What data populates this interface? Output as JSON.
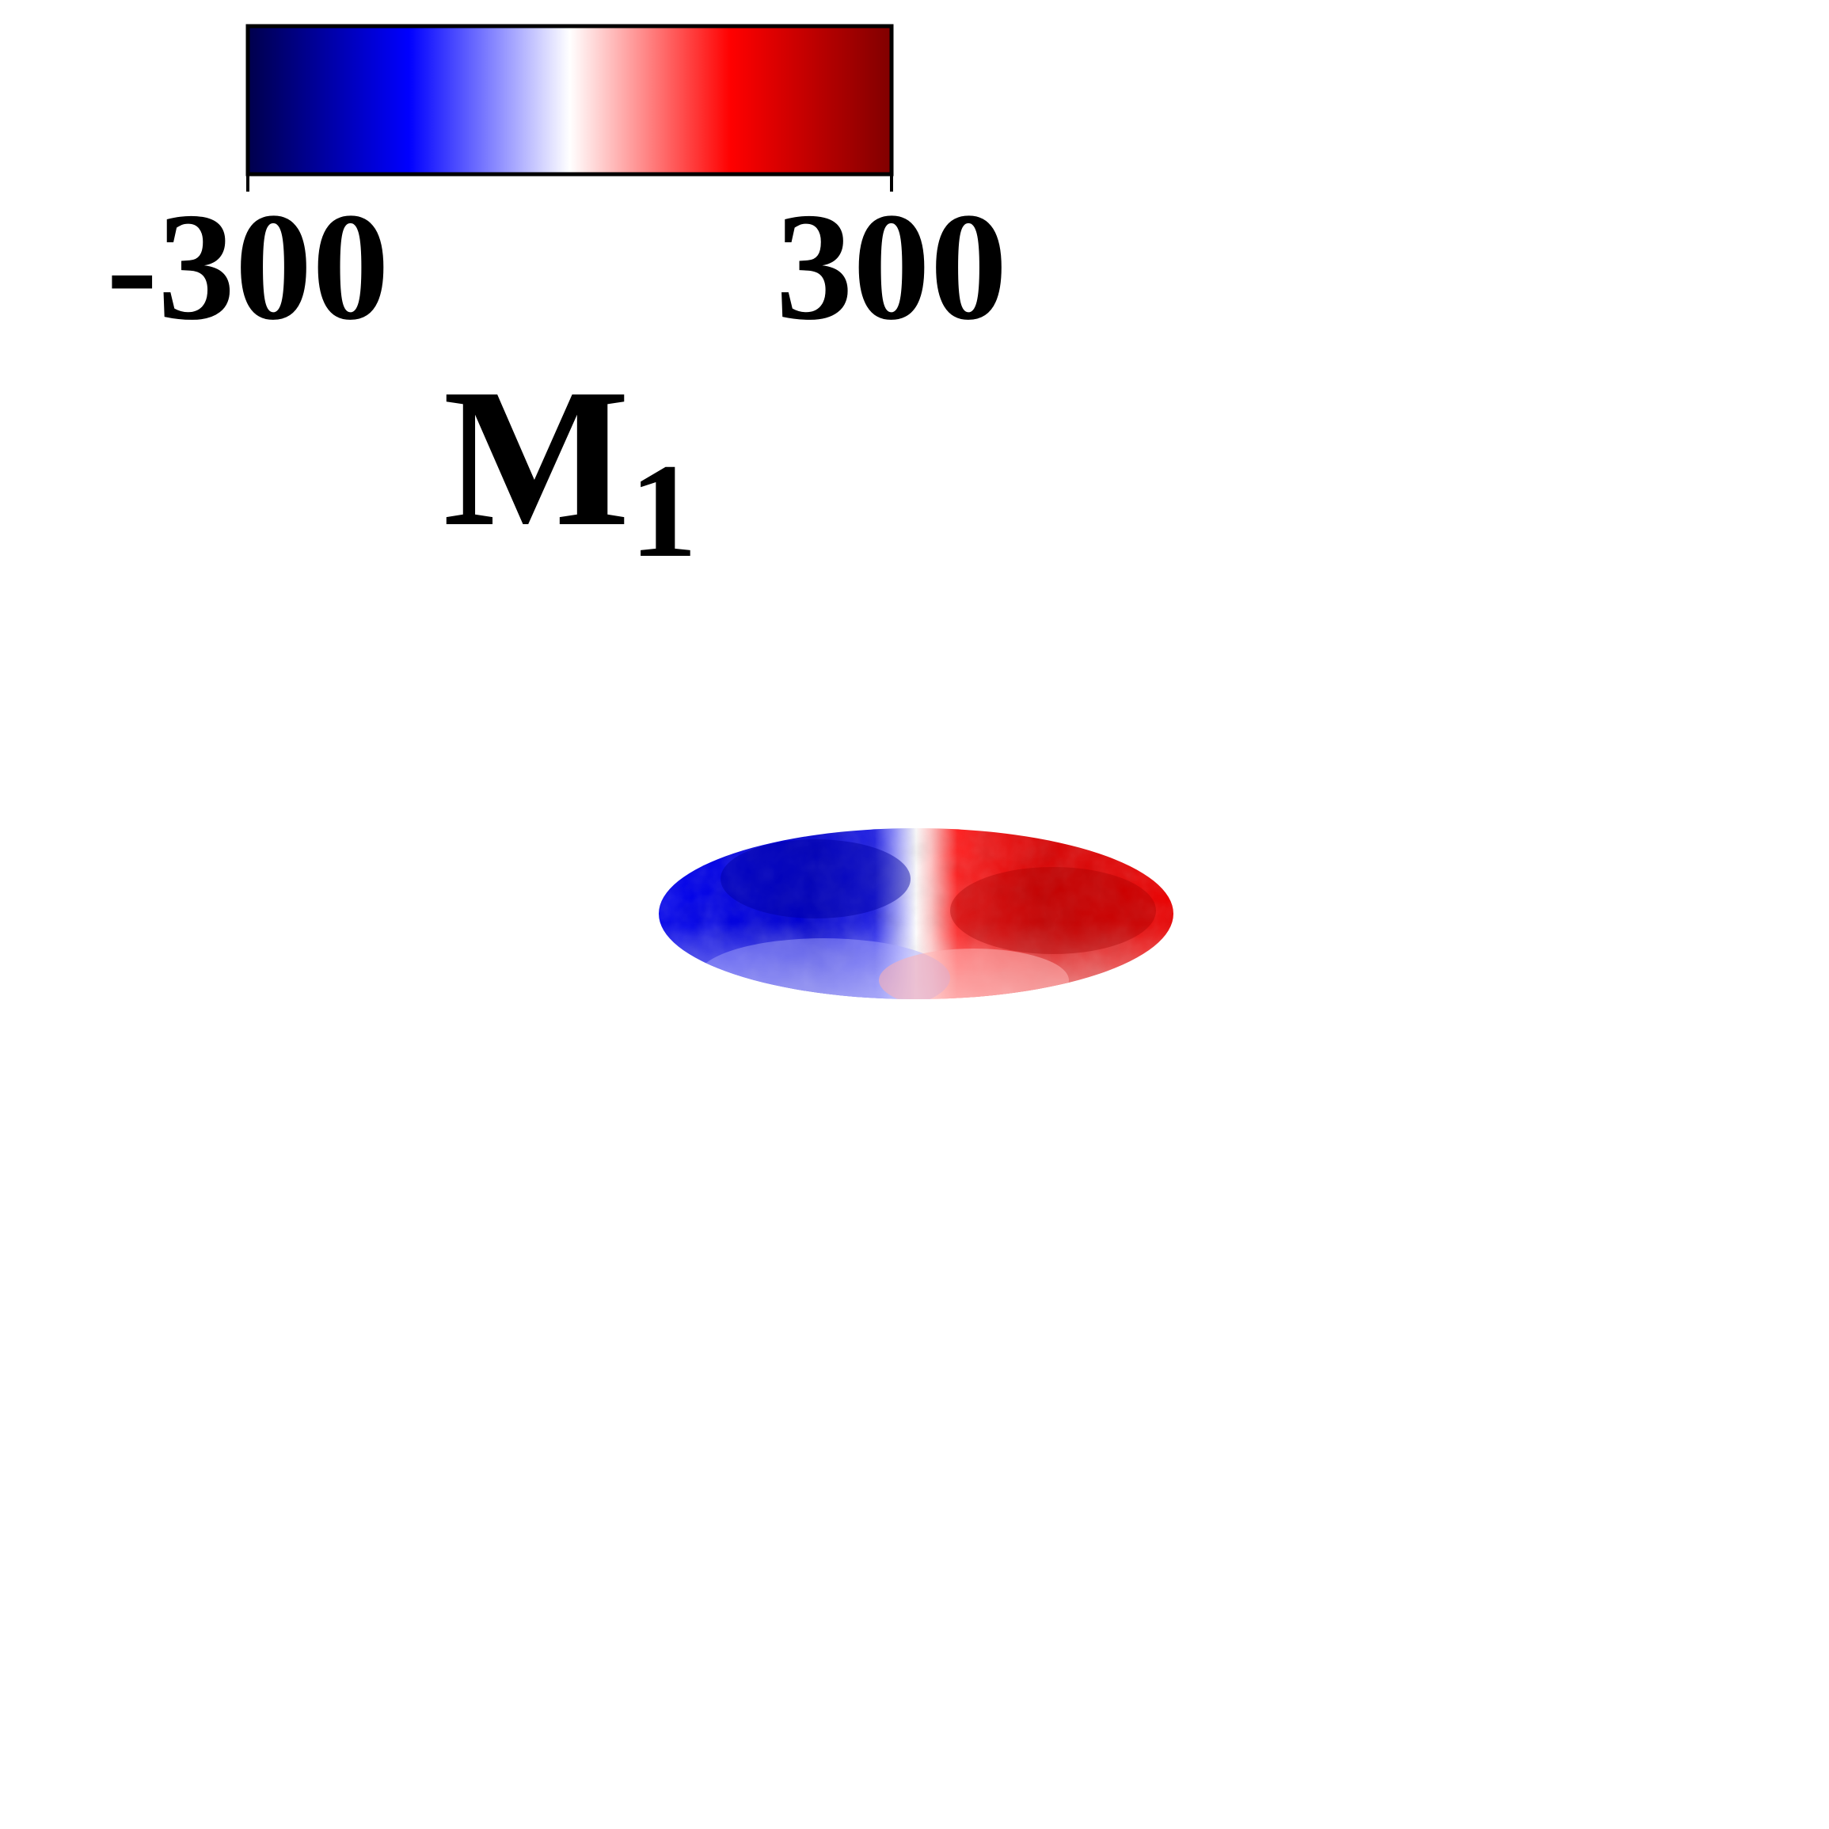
{
  "chart_data": {
    "type": "heatmap",
    "title": "",
    "colorbar": {
      "min": -300,
      "max": 300,
      "tick_labels": [
        "-300",
        "300"
      ],
      "label_main": "M",
      "label_sub": "1",
      "colormap": "seismic",
      "colors": [
        "#00004c",
        "#0000ff",
        "#ffffff",
        "#ff0000",
        "#800000"
      ],
      "placement": "top-left"
    },
    "map": {
      "projection": "mollweide",
      "description_values": {
        "left_half_approx": -220,
        "right_half_approx": 230,
        "center_approx": 0
      },
      "left_color": "#0000ff",
      "right_color": "#e00000",
      "center_color": "#ffffff"
    }
  }
}
